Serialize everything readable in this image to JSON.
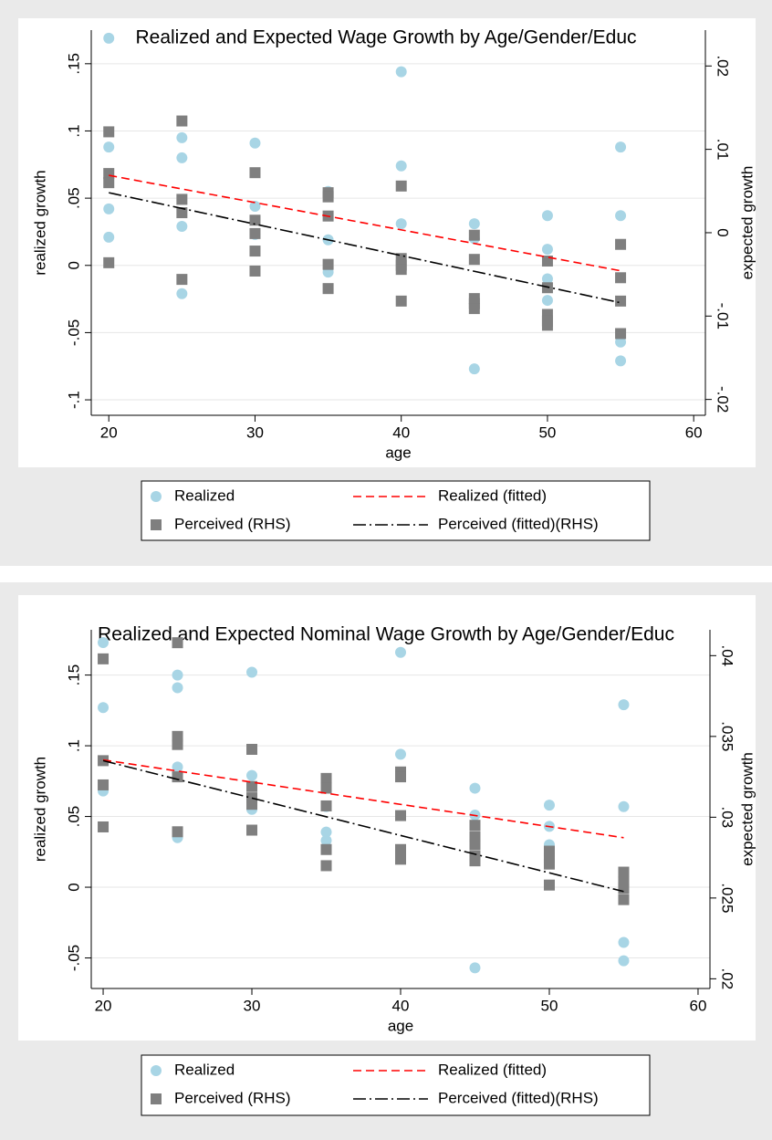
{
  "chart_data": [
    {
      "type": "scatter",
      "title": "Realized and Expected Wage Growth by Age/Gender/Educ",
      "xlabel": "age",
      "ylabel": "realized growth",
      "y2label": "expected growth",
      "xlim": [
        18.8,
        60.8
      ],
      "xticks": [
        20,
        30,
        40,
        50,
        60
      ],
      "ylim": [
        -0.1115,
        0.175
      ],
      "yticks": [
        {
          "value": 0.15,
          "label": ".15"
        },
        {
          "value": 0.1,
          "label": ".1"
        },
        {
          "value": 0.05,
          "label": ".05"
        },
        0,
        {
          "value": -0.05,
          "label": "-.05"
        },
        {
          "value": -0.1,
          "label": "-.1"
        }
      ],
      "y2lim": [
        -0.0219,
        0.0243
      ],
      "y2ticks": [
        {
          "value": 0.02,
          "label": ".02"
        },
        {
          "value": 0.01,
          "label": ".01"
        },
        0,
        {
          "value": -0.01,
          "label": "-.01"
        },
        {
          "value": -0.02,
          "label": "-.02"
        }
      ],
      "grid": true,
      "legend": "bottom",
      "series": [
        {
          "name": "Realized",
          "color": "#a8d5e5",
          "marker": "circle",
          "x": [
            20,
            20,
            20,
            20,
            25,
            25,
            25,
            25,
            30,
            30,
            30,
            35,
            35,
            35,
            40,
            40,
            40,
            45,
            45,
            45,
            50,
            50,
            50,
            50,
            55,
            55,
            55,
            55
          ],
          "values": [
            0.169,
            0.088,
            0.042,
            0.021,
            0.095,
            0.08,
            0.029,
            -0.021,
            0.091,
            0.044,
            0.023,
            0.055,
            0.019,
            -0.005,
            0.144,
            0.074,
            0.031,
            0.031,
            0.02,
            -0.077,
            0.037,
            0.012,
            -0.01,
            -0.026,
            0.088,
            0.037,
            -0.057,
            -0.071
          ]
        },
        {
          "name": "Perceived (RHS)",
          "color": "#7f7f7f",
          "marker": "square",
          "axis": "y2",
          "x": [
            20,
            20,
            20,
            20,
            25,
            25,
            25,
            25,
            30,
            30,
            30,
            30,
            30,
            35,
            35,
            35,
            35,
            35,
            40,
            40,
            40,
            40,
            40,
            45,
            45,
            45,
            45,
            45,
            50,
            50,
            50,
            50,
            50,
            55,
            55,
            55,
            55
          ],
          "values": [
            0.0121,
            0.0071,
            0.006,
            -0.0036,
            0.0134,
            0.004,
            0.0024,
            -0.0056,
            0.0072,
            0.0015,
            -0.0001,
            -0.0022,
            -0.0046,
            0.0048,
            0.0043,
            0.002,
            -0.0038,
            -0.0067,
            0.0056,
            -0.0031,
            -0.0039,
            -0.0044,
            -0.0082,
            -0.0003,
            -0.0032,
            -0.0079,
            -0.0085,
            -0.0091,
            -0.0034,
            -0.0066,
            -0.0098,
            -0.0106,
            -0.0111,
            -0.0014,
            -0.0054,
            -0.0082,
            -0.0121
          ]
        },
        {
          "name": "Realized (fitted)",
          "color": "#ff0000",
          "style": "dashed",
          "x": [
            20,
            55
          ],
          "values": [
            0.067,
            -0.004
          ]
        },
        {
          "name": "Perceived (fitted)(RHS)",
          "color": "#000000",
          "style": "dash-dot",
          "axis": "y2",
          "x": [
            20,
            55
          ],
          "values": [
            0.0048,
            -0.0084
          ]
        }
      ]
    },
    {
      "type": "scatter",
      "title": "Realized and Expected Nominal Wage Growth by Age/Gender/Educ",
      "xlabel": "age",
      "ylabel": "realized growth",
      "y2label": "expected growth",
      "xlim": [
        19.2,
        60.8
      ],
      "xticks": [
        20,
        30,
        40,
        50,
        60
      ],
      "ylim": [
        -0.0716,
        0.182
      ],
      "yticks": [
        {
          "value": 0.15,
          "label": ".15"
        },
        {
          "value": 0.1,
          "label": ".1"
        },
        {
          "value": 0.05,
          "label": ".05"
        },
        0,
        {
          "value": -0.05,
          "label": "-.05"
        }
      ],
      "y2lim": [
        0.0194,
        0.0416
      ],
      "y2ticks": [
        {
          "value": 0.04,
          "label": ".04"
        },
        {
          "value": 0.035,
          "label": ".035"
        },
        {
          "value": 0.03,
          "label": ".03"
        },
        {
          "value": 0.025,
          "label": ".025"
        },
        {
          "value": 0.02,
          "label": ".02"
        }
      ],
      "grid": true,
      "legend": "bottom",
      "series": [
        {
          "name": "Realized",
          "color": "#a8d5e5",
          "marker": "circle",
          "x": [
            20,
            20,
            20,
            25,
            25,
            25,
            25,
            30,
            30,
            30,
            35,
            35,
            35,
            35,
            40,
            40,
            40,
            45,
            45,
            45,
            50,
            50,
            50,
            50,
            55,
            55,
            55,
            55
          ],
          "values": [
            0.173,
            0.127,
            0.068,
            0.15,
            0.141,
            0.085,
            0.035,
            0.152,
            0.079,
            0.055,
            0.074,
            0.057,
            0.039,
            0.033,
            0.166,
            0.094,
            0.079,
            0.07,
            0.051,
            -0.057,
            0.058,
            0.043,
            0.03,
            0.027,
            0.129,
            0.057,
            -0.039,
            -0.052
          ]
        },
        {
          "name": "Perceived (RHS)",
          "color": "#7f7f7f",
          "marker": "square",
          "axis": "y2",
          "x": [
            20,
            20,
            20,
            20,
            25,
            25,
            25,
            25,
            25,
            30,
            30,
            30,
            30,
            30,
            35,
            35,
            35,
            35,
            35,
            40,
            40,
            40,
            40,
            40,
            45,
            45,
            45,
            45,
            45,
            50,
            50,
            50,
            50,
            55,
            55,
            55,
            55
          ],
          "values": [
            0.0398,
            0.0335,
            0.032,
            0.0294,
            0.0408,
            0.035,
            0.0345,
            0.0325,
            0.0291,
            0.0342,
            0.0319,
            0.0312,
            0.0308,
            0.0292,
            0.0324,
            0.0318,
            0.0307,
            0.028,
            0.027,
            0.0328,
            0.0325,
            0.0301,
            0.028,
            0.0274,
            0.0295,
            0.0288,
            0.0283,
            0.0276,
            0.0273,
            0.0279,
            0.0275,
            0.0271,
            0.0258,
            0.0266,
            0.026,
            0.0256,
            0.0249
          ]
        },
        {
          "name": "Realized (fitted)",
          "color": "#ff0000",
          "style": "dashed",
          "x": [
            20,
            55
          ],
          "values": [
            0.09,
            0.035
          ]
        },
        {
          "name": "Perceived (fitted)(RHS)",
          "color": "#000000",
          "style": "dash-dot",
          "axis": "y2",
          "x": [
            20,
            55
          ],
          "values": [
            0.0335,
            0.0254
          ]
        }
      ]
    }
  ]
}
